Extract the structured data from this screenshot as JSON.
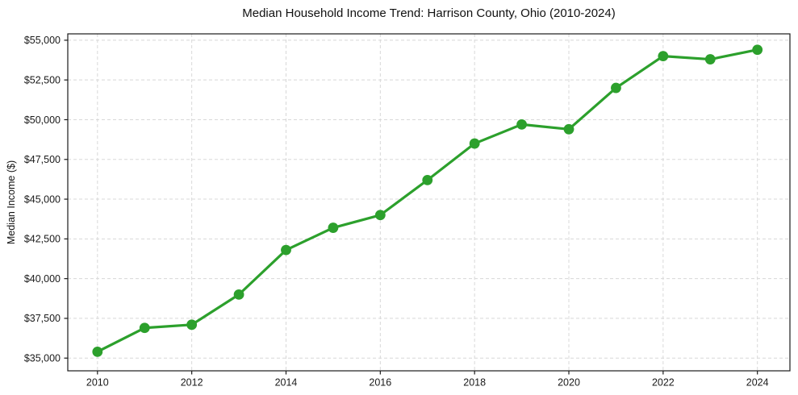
{
  "chart_data": {
    "type": "line",
    "title": "Median Household Income Trend: Harrison County, Ohio (2010-2024)",
    "xlabel": "",
    "ylabel": "Median Income ($)",
    "series": [
      {
        "x": [
          2010,
          2011,
          2012,
          2013,
          2014,
          2015,
          2016,
          2017,
          2018,
          2019,
          2020,
          2021,
          2022,
          2023,
          2024
        ],
        "values": [
          35400,
          36900,
          37100,
          39000,
          41800,
          43200,
          44000,
          46200,
          48500,
          49700,
          49400,
          52000,
          54000,
          53800,
          54400
        ]
      }
    ],
    "xlim": [
      2009.37,
      2024.69
    ],
    "ylim": [
      34200,
      55400
    ],
    "xticks": [
      2010,
      2012,
      2014,
      2016,
      2018,
      2020,
      2022,
      2024
    ],
    "xtick_labels": [
      "2010",
      "2012",
      "2014",
      "2016",
      "2018",
      "2020",
      "2022",
      "2024"
    ],
    "yticks": [
      35000,
      37500,
      40000,
      42500,
      45000,
      47500,
      50000,
      52500,
      55000
    ],
    "ytick_labels": [
      "$35,000",
      "$37,500",
      "$40,000",
      "$42,500",
      "$45,000",
      "$47,500",
      "$50,000",
      "$52,500",
      "$55,000"
    ],
    "grid": true,
    "legend": "none",
    "line_color": "#2ca02c",
    "marker": "circle",
    "grid_color": "#d8d8d8",
    "axis_color": "#1a1a1a",
    "text_color": "#1a1a1a",
    "background_color": "#ffffff"
  }
}
